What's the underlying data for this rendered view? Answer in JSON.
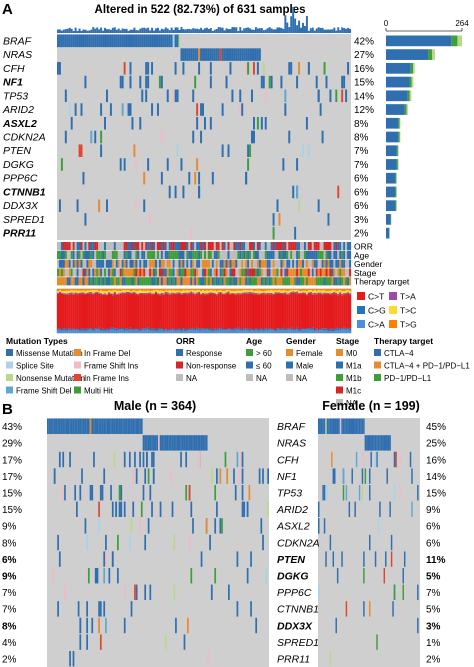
{
  "panel_a": {
    "letter": "A",
    "title": "Altered in 522 (82.73%) of 631 samples",
    "tmb_axis": {
      "min": "0",
      "max": "264"
    },
    "genes": [
      {
        "name": "BRAF",
        "pct": "42%",
        "bold": false
      },
      {
        "name": "NRAS",
        "pct": "27%",
        "bold": false
      },
      {
        "name": "CFH",
        "pct": "16%",
        "bold": false
      },
      {
        "name": "NF1",
        "pct": "15%",
        "bold": true
      },
      {
        "name": "TP53",
        "pct": "14%",
        "bold": false
      },
      {
        "name": "ARID2",
        "pct": "12%",
        "bold": false
      },
      {
        "name": "ASXL2",
        "pct": "8%",
        "bold": true
      },
      {
        "name": "CDKN2A",
        "pct": "8%",
        "bold": false
      },
      {
        "name": "PTEN",
        "pct": "7%",
        "bold": false
      },
      {
        "name": "DGKG",
        "pct": "7%",
        "bold": false
      },
      {
        "name": "PPP6C",
        "pct": "6%",
        "bold": false
      },
      {
        "name": "CTNNB1",
        "pct": "6%",
        "bold": true
      },
      {
        "name": "DDX3X",
        "pct": "6%",
        "bold": false
      },
      {
        "name": "SPRED1",
        "pct": "3%",
        "bold": false
      },
      {
        "name": "PRR11",
        "pct": "2%",
        "bold": true
      }
    ],
    "clinical_tracks": [
      "ORR",
      "Age",
      "Gender",
      "Stage",
      "Therapy target"
    ],
    "titv_legend": [
      {
        "label": "C>T",
        "color": "#e41a1c"
      },
      {
        "label": "T>A",
        "color": "#984ea3"
      },
      {
        "label": "C>G",
        "color": "#1f78b4"
      },
      {
        "label": "T>C",
        "color": "#ffd92f"
      },
      {
        "label": "C>A",
        "color": "#4a8fd8"
      },
      {
        "label": "T>G",
        "color": "#ff7f00"
      }
    ]
  },
  "legend": {
    "mutation_types": {
      "title": "Mutation Types",
      "items": [
        {
          "label": "Missense Mutation",
          "color": "#2f6fb0"
        },
        {
          "label": "In Frame Del",
          "color": "#e88b2e"
        },
        {
          "label": "Splice Site",
          "color": "#a8d3e8"
        },
        {
          "label": "Frame Shift Ins",
          "color": "#f2b9c6"
        },
        {
          "label": "Nonsense Mutation",
          "color": "#b9d98a"
        },
        {
          "label": "In Frame Ins",
          "color": "#e2462f"
        },
        {
          "label": "Frame Shift Del",
          "color": "#5fa8d3"
        },
        {
          "label": "Multi Hit",
          "color": "#3d9e3a"
        }
      ]
    },
    "orr": {
      "title": "ORR",
      "items": [
        {
          "label": "Response",
          "color": "#2f6fb0"
        },
        {
          "label": "Non-response",
          "color": "#d62728"
        },
        {
          "label": "NA",
          "color": "#bdbdbd"
        }
      ]
    },
    "age": {
      "title": "Age",
      "items": [
        {
          "label": "> 60",
          "color": "#3d9e3a"
        },
        {
          "label": "≤ 60",
          "color": "#2f6fb0"
        },
        {
          "label": "NA",
          "color": "#bdbdbd"
        }
      ]
    },
    "gender": {
      "title": "Gender",
      "items": [
        {
          "label": "Female",
          "color": "#e88b2e"
        },
        {
          "label": "Male",
          "color": "#2f6fb0"
        },
        {
          "label": "NA",
          "color": "#bdbdbd"
        }
      ]
    },
    "stage": {
      "title": "Stage",
      "items": [
        {
          "label": "M0",
          "color": "#e88b2e"
        },
        {
          "label": "M1a",
          "color": "#2f6fb0"
        },
        {
          "label": "M1b",
          "color": "#3d9e3a"
        },
        {
          "label": "M1c",
          "color": "#d62728"
        },
        {
          "label": "NA",
          "color": "#bdbdbd"
        }
      ]
    },
    "therapy": {
      "title": "Therapy target",
      "items": [
        {
          "label": "CTLA−4",
          "color": "#2f6fb0"
        },
        {
          "label": "CTLA−4 + PD−1/PD−L1",
          "color": "#e88b2e"
        },
        {
          "label": "PD−1/PD−L1",
          "color": "#3d9e3a"
        }
      ]
    }
  },
  "panel_b": {
    "letter": "B",
    "male_title": "Male (n = 364)",
    "female_title": "Female (n = 199)",
    "genes": [
      {
        "name": "BRAF",
        "male": "43%",
        "female": "45%",
        "bold": false
      },
      {
        "name": "NRAS",
        "male": "29%",
        "female": "25%",
        "bold": false
      },
      {
        "name": "CFH",
        "male": "17%",
        "female": "16%",
        "bold": false
      },
      {
        "name": "NF1",
        "male": "17%",
        "female": "14%",
        "bold": false
      },
      {
        "name": "TP53",
        "male": "15%",
        "female": "15%",
        "bold": false
      },
      {
        "name": "ARID2",
        "male": "15%",
        "female": "9%",
        "bold": false
      },
      {
        "name": "ASXL2",
        "male": "9%",
        "female": "6%",
        "bold": false
      },
      {
        "name": "CDKN2A",
        "male": "8%",
        "female": "6%",
        "bold": false
      },
      {
        "name": "PTEN",
        "male": "6%",
        "female": "11%",
        "bold": true
      },
      {
        "name": "DGKG",
        "male": "9%",
        "female": "5%",
        "bold": true
      },
      {
        "name": "PPP6C",
        "male": "7%",
        "female": "7%",
        "bold": false
      },
      {
        "name": "CTNNB1",
        "male": "7%",
        "female": "5%",
        "bold": false
      },
      {
        "name": "DDX3X",
        "male": "8%",
        "female": "3%",
        "bold": true
      },
      {
        "name": "SPRED1",
        "male": "4%",
        "female": "1%",
        "bold": false
      },
      {
        "name": "PRR11",
        "male": "2%",
        "female": "2%",
        "bold": false
      }
    ]
  },
  "chart_data": [
    {
      "type": "heatmap",
      "title": "Altered in 522 (82.73%) of 631 samples",
      "categories": [
        "BRAF",
        "NRAS",
        "CFH",
        "NF1",
        "TP53",
        "ARID2",
        "ASXL2",
        "CDKN2A",
        "PTEN",
        "DGKG",
        "PPP6C",
        "CTNNB1",
        "DDX3X",
        "SPRED1",
        "PRR11"
      ],
      "series": [
        {
          "values": [
            42,
            27,
            16,
            15,
            14,
            12,
            8,
            8,
            7,
            7,
            6,
            6,
            6,
            3,
            2
          ]
        }
      ],
      "gene_counts_axis": [
        0,
        264
      ],
      "gene_counts": [
        264,
        170,
        100,
        95,
        88,
        76,
        50,
        50,
        44,
        44,
        38,
        38,
        38,
        19,
        13
      ]
    },
    {
      "type": "heatmap",
      "title": "Male (n = 364)",
      "categories": [
        "BRAF",
        "NRAS",
        "CFH",
        "NF1",
        "TP53",
        "ARID2",
        "ASXL2",
        "CDKN2A",
        "PTEN",
        "DGKG",
        "PPP6C",
        "CTNNB1",
        "DDX3X",
        "SPRED1",
        "PRR11"
      ],
      "series": [
        {
          "values": [
            43,
            29,
            17,
            17,
            15,
            15,
            9,
            8,
            6,
            9,
            7,
            7,
            8,
            4,
            2
          ]
        }
      ]
    },
    {
      "type": "heatmap",
      "title": "Female (n = 199)",
      "categories": [
        "BRAF",
        "NRAS",
        "CFH",
        "NF1",
        "TP53",
        "ARID2",
        "ASXL2",
        "CDKN2A",
        "PTEN",
        "DGKG",
        "PPP6C",
        "CTNNB1",
        "DDX3X",
        "SPRED1",
        "PRR11"
      ],
      "series": [
        {
          "values": [
            45,
            25,
            16,
            14,
            15,
            9,
            6,
            6,
            11,
            5,
            7,
            5,
            3,
            1,
            2
          ]
        }
      ]
    }
  ]
}
